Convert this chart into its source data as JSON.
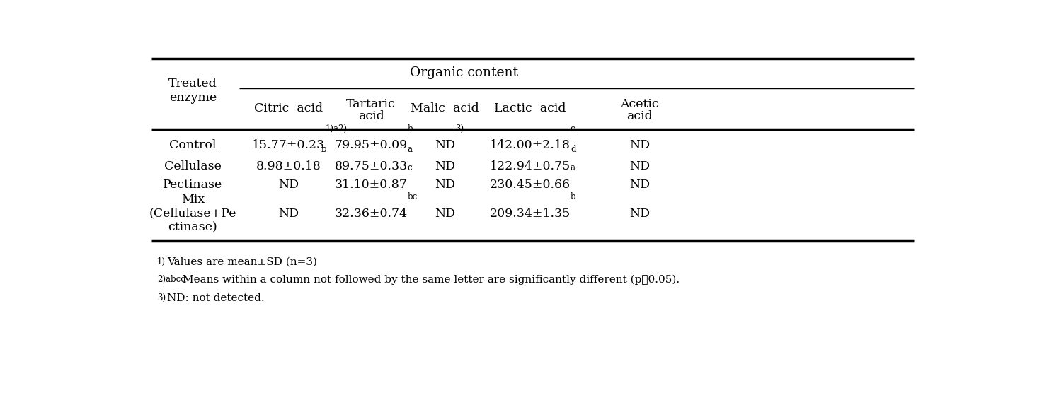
{
  "title": "Organic content",
  "col_headers_row1": [
    "",
    "Citric acid",
    "Tartaric",
    "Malic acid",
    "Lactic acid",
    "Acetic"
  ],
  "col_headers_row2": [
    "",
    "",
    "acid",
    "",
    "",
    "acid"
  ],
  "rows": [
    {
      "enzyme": "Control",
      "citric": "15.77±0.23",
      "citric_super": "1)a2)",
      "tartaric": "79.95±0.09",
      "tartaric_super": "b",
      "malic": "ND",
      "malic_super": "3)",
      "lactic": "142.00±2.18",
      "lactic_super": "c",
      "acetic": "ND",
      "acetic_super": ""
    },
    {
      "enzyme": "Cellulase",
      "citric": "8.98±0.18",
      "citric_super": "b",
      "tartaric": "89.75±0.33",
      "tartaric_super": "a",
      "malic": "ND",
      "malic_super": "",
      "lactic": "122.94±0.75",
      "lactic_super": "d",
      "acetic": "ND",
      "acetic_super": ""
    },
    {
      "enzyme": "Pectinase",
      "citric": "ND",
      "citric_super": "",
      "tartaric": "31.10±0.87",
      "tartaric_super": "c",
      "malic": "ND",
      "malic_super": "",
      "lactic": "230.45±0.66",
      "lactic_super": "a",
      "acetic": "ND",
      "acetic_super": ""
    },
    {
      "enzyme": "Mix\n(Cellulase+Pe\nctinase)",
      "citric": "ND",
      "citric_super": "",
      "tartaric": "32.36±0.74",
      "tartaric_super": "bc",
      "malic": "ND",
      "malic_super": "",
      "lactic": "209.34±1.35",
      "lactic_super": "b",
      "acetic": "ND",
      "acetic_super": ""
    }
  ],
  "bg_color": "#ffffff",
  "text_color": "#000000",
  "font_size": 12.5,
  "super_font_size": 8.5,
  "footnote_font_size": 11
}
